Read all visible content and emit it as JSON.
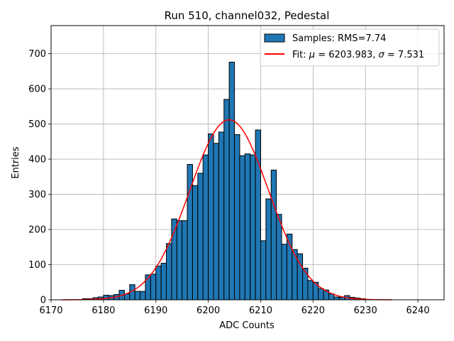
{
  "chart_data": {
    "type": "bar",
    "title": "Run 510, channel032, Pedestal",
    "xlabel": "ADC Counts",
    "ylabel": "Entries",
    "xlim": [
      6170,
      6245
    ],
    "ylim": [
      0,
      780
    ],
    "xticks": [
      6170,
      6180,
      6190,
      6200,
      6210,
      6220,
      6230,
      6240
    ],
    "yticks": [
      0,
      100,
      200,
      300,
      400,
      500,
      600,
      700
    ],
    "grid": true,
    "legend_position": "top-right",
    "histogram": {
      "name": "Samples: RMS=7.74",
      "color": "#1f77b4",
      "bin_start": 6172,
      "bin_width": 1,
      "counts": [
        0,
        0,
        0,
        0,
        3,
        3,
        6,
        8,
        13,
        12,
        15,
        27,
        17,
        43,
        24,
        24,
        71,
        73,
        96,
        104,
        160,
        230,
        225,
        225,
        385,
        325,
        360,
        412,
        472,
        445,
        477,
        570,
        676,
        470,
        410,
        415,
        412,
        483,
        168,
        287,
        369,
        243,
        158,
        187,
        143,
        131,
        90,
        55,
        50,
        32,
        28,
        17,
        8,
        7,
        12,
        7,
        5,
        3,
        1,
        0,
        0,
        0,
        0
      ]
    },
    "fit": {
      "name_prefix": "Fit:",
      "name_suffix": "= 6203.983,",
      "sigma_suffix": "= 7.531",
      "mu_symbol": "μ",
      "sigma_symbol": "σ",
      "color": "#ff0000",
      "mu": 6203.983,
      "sigma": 7.531,
      "amplitude": 512,
      "x_range": [
        6172,
        6235
      ]
    }
  }
}
